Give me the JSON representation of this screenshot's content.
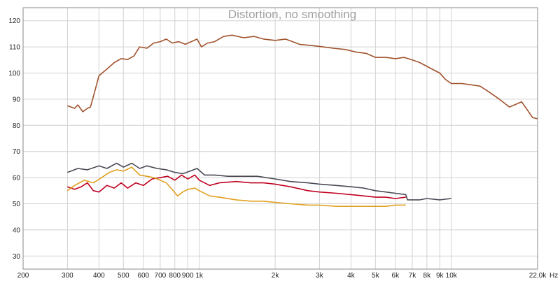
{
  "chart_data": {
    "type": "line",
    "title": "Distortion, no smoothing",
    "x_unit": "Hz",
    "x_scale": "log",
    "xlim": [
      200,
      22000
    ],
    "ylim": [
      25,
      125
    ],
    "grid": true,
    "x_ticks": [
      {
        "value": 200,
        "label": "200"
      },
      {
        "value": 300,
        "label": "300"
      },
      {
        "value": 400,
        "label": "400"
      },
      {
        "value": 500,
        "label": "500"
      },
      {
        "value": 600,
        "label": "600"
      },
      {
        "value": 700,
        "label": "700"
      },
      {
        "value": 800,
        "label": "800"
      },
      {
        "value": 900,
        "label": "900"
      },
      {
        "value": 1000,
        "label": "1k"
      },
      {
        "value": 2000,
        "label": "2k"
      },
      {
        "value": 3000,
        "label": "3k"
      },
      {
        "value": 4000,
        "label": "4k"
      },
      {
        "value": 5000,
        "label": "5k"
      },
      {
        "value": 6000,
        "label": "6k"
      },
      {
        "value": 7000,
        "label": "7k"
      },
      {
        "value": 8000,
        "label": "8k"
      },
      {
        "value": 9000,
        "label": "9k"
      },
      {
        "value": 10000,
        "label": "10k"
      },
      {
        "value": 22000,
        "label": "22.0k"
      }
    ],
    "y_ticks": [
      {
        "value": 30,
        "label": "30"
      },
      {
        "value": 40,
        "label": "40"
      },
      {
        "value": 50,
        "label": "50"
      },
      {
        "value": 60,
        "label": "60"
      },
      {
        "value": 70,
        "label": "70"
      },
      {
        "value": 80,
        "label": "80"
      },
      {
        "value": 90,
        "label": "90"
      },
      {
        "value": 100,
        "label": "100"
      },
      {
        "value": 110,
        "label": "110"
      },
      {
        "value": 120,
        "label": "120"
      }
    ],
    "series": [
      {
        "color": "#a0522d",
        "points": [
          [
            300,
            87.5
          ],
          [
            320,
            86.5
          ],
          [
            330,
            87.8
          ],
          [
            345,
            85.2
          ],
          [
            360,
            86.5
          ],
          [
            370,
            87
          ],
          [
            380,
            91
          ],
          [
            400,
            99
          ],
          [
            430,
            101.5
          ],
          [
            460,
            104
          ],
          [
            490,
            105.5
          ],
          [
            520,
            105.2
          ],
          [
            550,
            106.5
          ],
          [
            580,
            110
          ],
          [
            620,
            109.5
          ],
          [
            660,
            111.5
          ],
          [
            700,
            112
          ],
          [
            740,
            113
          ],
          [
            780,
            111.5
          ],
          [
            830,
            112
          ],
          [
            880,
            111
          ],
          [
            930,
            112
          ],
          [
            980,
            113
          ],
          [
            1020,
            110
          ],
          [
            1080,
            111.5
          ],
          [
            1150,
            112
          ],
          [
            1250,
            114
          ],
          [
            1350,
            114.5
          ],
          [
            1500,
            113.5
          ],
          [
            1650,
            114
          ],
          [
            1800,
            113
          ],
          [
            2000,
            112.5
          ],
          [
            2200,
            113
          ],
          [
            2500,
            111
          ],
          [
            2800,
            110.5
          ],
          [
            3100,
            110
          ],
          [
            3400,
            109.5
          ],
          [
            3800,
            109
          ],
          [
            4200,
            108
          ],
          [
            4600,
            107.5
          ],
          [
            5000,
            106
          ],
          [
            5500,
            106
          ],
          [
            6000,
            105.5
          ],
          [
            6500,
            106
          ],
          [
            7000,
            105
          ],
          [
            7500,
            104
          ],
          [
            8200,
            102
          ],
          [
            9000,
            100
          ],
          [
            9500,
            97.5
          ],
          [
            10000,
            96
          ],
          [
            11000,
            96
          ],
          [
            12000,
            95.5
          ],
          [
            13000,
            95
          ],
          [
            14000,
            93
          ],
          [
            15000,
            91
          ],
          [
            16000,
            89
          ],
          [
            17000,
            87
          ],
          [
            18000,
            88
          ],
          [
            19000,
            89
          ],
          [
            20000,
            86
          ],
          [
            21000,
            83
          ],
          [
            22000,
            82.5
          ]
        ]
      },
      {
        "color": "#4a4a55",
        "points": [
          [
            300,
            62
          ],
          [
            330,
            63.5
          ],
          [
            360,
            63
          ],
          [
            400,
            64.5
          ],
          [
            430,
            63.5
          ],
          [
            470,
            65.5
          ],
          [
            500,
            64
          ],
          [
            540,
            65.5
          ],
          [
            580,
            63.5
          ],
          [
            620,
            64.5
          ],
          [
            680,
            63.5
          ],
          [
            740,
            63
          ],
          [
            800,
            62
          ],
          [
            860,
            61.5
          ],
          [
            920,
            62.5
          ],
          [
            980,
            63.5
          ],
          [
            1050,
            61
          ],
          [
            1150,
            61
          ],
          [
            1300,
            60.5
          ],
          [
            1500,
            60.5
          ],
          [
            1700,
            60.5
          ],
          [
            2000,
            59.5
          ],
          [
            2300,
            58.5
          ],
          [
            2700,
            58
          ],
          [
            3000,
            57.5
          ],
          [
            3500,
            57
          ],
          [
            4000,
            56.5
          ],
          [
            4500,
            56
          ],
          [
            5000,
            55
          ],
          [
            5500,
            54.5
          ],
          [
            6000,
            54
          ],
          [
            6600,
            53.5
          ],
          [
            6700,
            51.5
          ],
          [
            7500,
            51.5
          ],
          [
            8000,
            52
          ],
          [
            9000,
            51.5
          ],
          [
            10000,
            52
          ]
        ]
      },
      {
        "color": "#c00020",
        "points": [
          [
            300,
            56.5
          ],
          [
            320,
            55.5
          ],
          [
            340,
            56.5
          ],
          [
            360,
            58
          ],
          [
            380,
            55
          ],
          [
            400,
            54.5
          ],
          [
            430,
            57
          ],
          [
            460,
            56
          ],
          [
            490,
            58
          ],
          [
            520,
            56
          ],
          [
            560,
            58
          ],
          [
            600,
            57
          ],
          [
            650,
            59.5
          ],
          [
            700,
            60
          ],
          [
            750,
            60.5
          ],
          [
            800,
            59
          ],
          [
            850,
            61
          ],
          [
            900,
            59.5
          ],
          [
            960,
            61
          ],
          [
            1000,
            59
          ],
          [
            1100,
            57
          ],
          [
            1200,
            58
          ],
          [
            1400,
            58.5
          ],
          [
            1600,
            58
          ],
          [
            1800,
            58
          ],
          [
            2000,
            57.5
          ],
          [
            2300,
            56.5
          ],
          [
            2700,
            55
          ],
          [
            3000,
            54.5
          ],
          [
            3500,
            54
          ],
          [
            4000,
            53.5
          ],
          [
            4500,
            53
          ],
          [
            5000,
            52.5
          ],
          [
            5500,
            52.5
          ],
          [
            6000,
            52
          ],
          [
            6600,
            52.5
          ]
        ]
      },
      {
        "color": "#e0a020",
        "points": [
          [
            300,
            55
          ],
          [
            320,
            57
          ],
          [
            350,
            59
          ],
          [
            380,
            58
          ],
          [
            410,
            60
          ],
          [
            440,
            62
          ],
          [
            470,
            63
          ],
          [
            500,
            62.5
          ],
          [
            540,
            64
          ],
          [
            580,
            61
          ],
          [
            620,
            60.5
          ],
          [
            660,
            60
          ],
          [
            700,
            59
          ],
          [
            740,
            58
          ],
          [
            780,
            55.5
          ],
          [
            820,
            53
          ],
          [
            860,
            54.5
          ],
          [
            900,
            55.5
          ],
          [
            960,
            56
          ],
          [
            1000,
            55
          ],
          [
            1100,
            53
          ],
          [
            1200,
            52.5
          ],
          [
            1400,
            51.5
          ],
          [
            1600,
            51
          ],
          [
            1800,
            51
          ],
          [
            2000,
            50.5
          ],
          [
            2300,
            50
          ],
          [
            2700,
            49.5
          ],
          [
            3000,
            49.5
          ],
          [
            3500,
            49
          ],
          [
            4000,
            49
          ],
          [
            4500,
            49
          ],
          [
            5000,
            49
          ],
          [
            5500,
            49
          ],
          [
            6000,
            49.5
          ],
          [
            6600,
            49.5
          ]
        ]
      }
    ]
  }
}
